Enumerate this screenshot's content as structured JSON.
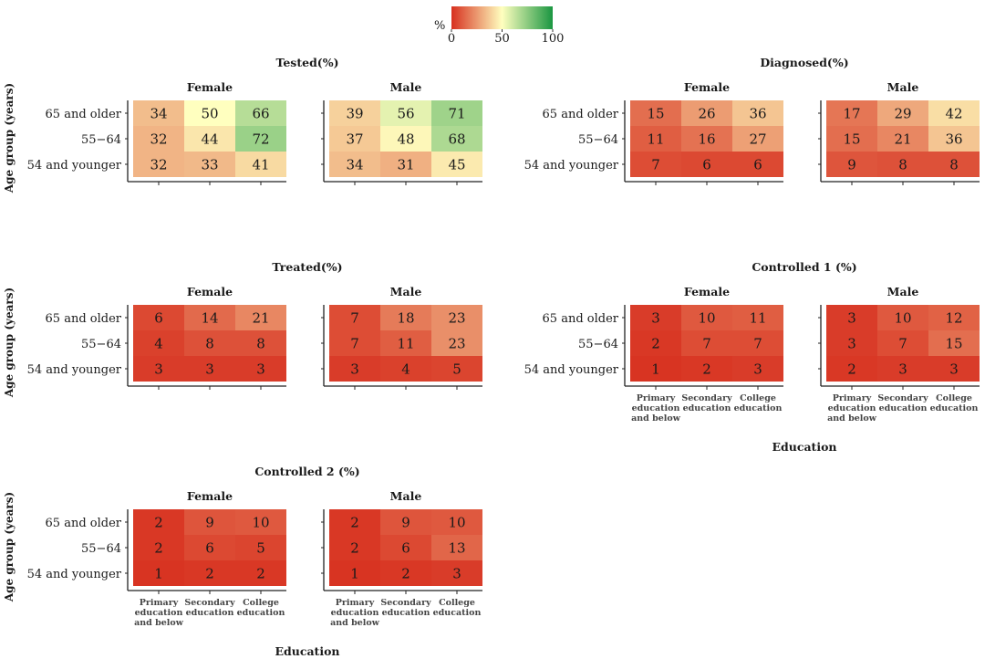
{
  "chart_data": {
    "type": "heatmap",
    "colors": {
      "low": "#d7301f",
      "mid": "#ffffbf",
      "high": "#1a9641"
    },
    "legend": {
      "title": "%",
      "ticks": [
        "0",
        "50",
        "100"
      ],
      "range": [
        0,
        100
      ]
    },
    "y_categories": [
      "65 and older",
      "55−64",
      "54 and younger"
    ],
    "x_categories": [
      [
        "Primary",
        "education",
        "and below"
      ],
      [
        "Secondary",
        "education"
      ],
      [
        "College",
        "education"
      ]
    ],
    "ylabel": "Age group (years)",
    "xlabel": "Education",
    "panels": [
      {
        "title": "Tested(%)",
        "facets": [
          {
            "name": "Female",
            "values": [
              [
                34,
                50,
                66
              ],
              [
                32,
                44,
                72
              ],
              [
                32,
                33,
                41
              ]
            ]
          },
          {
            "name": "Male",
            "values": [
              [
                39,
                56,
                71
              ],
              [
                37,
                48,
                68
              ],
              [
                34,
                31,
                45
              ]
            ]
          }
        ]
      },
      {
        "title": "Diagnosed(%)",
        "facets": [
          {
            "name": "Female",
            "values": [
              [
                15,
                26,
                36
              ],
              [
                11,
                16,
                27
              ],
              [
                7,
                6,
                6
              ]
            ]
          },
          {
            "name": "Male",
            "values": [
              [
                17,
                29,
                42
              ],
              [
                15,
                21,
                36
              ],
              [
                9,
                8,
                8
              ]
            ]
          }
        ]
      },
      {
        "title": "Treated(%)",
        "facets": [
          {
            "name": "Female",
            "values": [
              [
                6,
                14,
                21
              ],
              [
                4,
                8,
                8
              ],
              [
                3,
                3,
                3
              ]
            ]
          },
          {
            "name": "Male",
            "values": [
              [
                7,
                18,
                23
              ],
              [
                7,
                11,
                23
              ],
              [
                3,
                4,
                5
              ]
            ]
          }
        ]
      },
      {
        "title": "Controlled 1 (%)",
        "facets": [
          {
            "name": "Female",
            "values": [
              [
                3,
                10,
                11
              ],
              [
                2,
                7,
                7
              ],
              [
                1,
                2,
                3
              ]
            ]
          },
          {
            "name": "Male",
            "values": [
              [
                3,
                10,
                12
              ],
              [
                3,
                7,
                15
              ],
              [
                2,
                3,
                3
              ]
            ]
          }
        ]
      },
      {
        "title": "Controlled 2 (%)",
        "facets": [
          {
            "name": "Female",
            "values": [
              [
                2,
                9,
                10
              ],
              [
                2,
                6,
                5
              ],
              [
                1,
                2,
                2
              ]
            ]
          },
          {
            "name": "Male",
            "values": [
              [
                2,
                9,
                10
              ],
              [
                2,
                6,
                13
              ],
              [
                1,
                2,
                3
              ]
            ]
          }
        ]
      }
    ]
  }
}
